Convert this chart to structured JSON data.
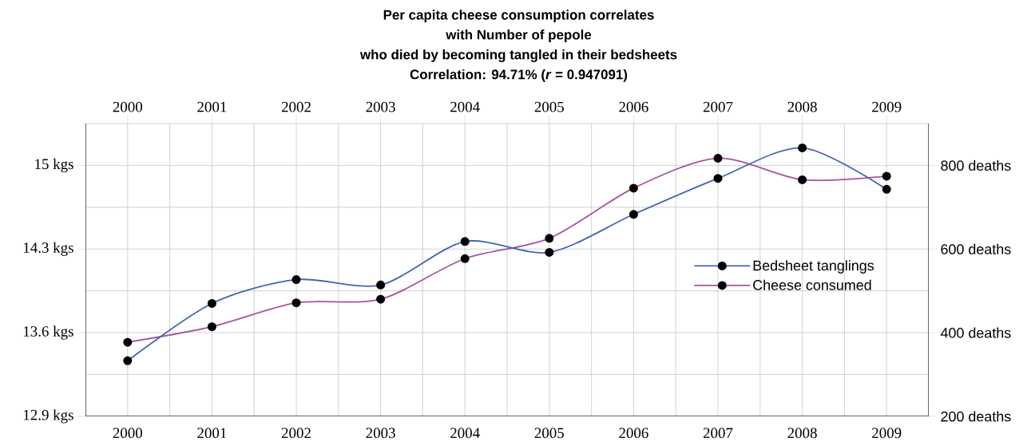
{
  "chart_data": {
    "type": "line",
    "title": "Per capita cheese consumption correlates with Number of pepole who died by becoming tangled in their bedsheets",
    "subtitle": "Correlation: 94.71% (*r* = 0.947091)",
    "x": [
      2000,
      2001,
      2002,
      2003,
      2004,
      2005,
      2006,
      2007,
      2008,
      2009
    ],
    "series": [
      {
        "name": "Bedsheet tanglings",
        "color": "#4466b0",
        "axis": "y2",
        "values": [
          333,
          470,
          527,
          514,
          618,
          592,
          683,
          769,
          842,
          743
        ]
      },
      {
        "name": "Cheese consumed",
        "color": "#a9529f",
        "values": [
          13.52,
          13.65,
          13.85,
          13.88,
          14.22,
          14.39,
          14.81,
          15.06,
          14.88,
          14.91
        ]
      }
    ],
    "xlim": [
      1999.5,
      2009.5
    ],
    "xticks": [
      2000,
      2001,
      2002,
      2003,
      2004,
      2005,
      2006,
      2007,
      2008,
      2009,
      {
        "value": 2000.5,
        "label": null
      },
      {
        "value": 2001.5,
        "label": null
      },
      {
        "value": 2002.5,
        "label": null
      },
      {
        "value": 2003.5,
        "label": null
      },
      {
        "value": 2004.5,
        "label": null
      },
      {
        "value": 2005.5,
        "label": null
      },
      {
        "value": 2006.5,
        "label": null
      },
      {
        "value": 2007.5,
        "label": null
      },
      {
        "value": 2008.5,
        "label": null
      }
    ],
    "x2lim": [
      1999.5,
      2009.5
    ],
    "x2ticks": [
      2000,
      2001,
      2002,
      2003,
      2004,
      2005,
      2006,
      2007,
      2008,
      2009
    ],
    "ylim": [
      12.9,
      15.35
    ],
    "yticks": [
      {
        "value": 12.9,
        "label": "12.9 kgs"
      },
      {
        "value": 13.25,
        "label": null
      },
      {
        "value": 13.6,
        "label": "13.6 kgs"
      },
      {
        "value": 13.95,
        "label": null
      },
      {
        "value": 14.3,
        "label": "14.3 kgs"
      },
      {
        "value": 14.65,
        "label": null
      },
      {
        "value": 15,
        "label": "15 kgs"
      },
      {
        "value": 15.35,
        "label": null
      }
    ],
    "y2lim": [
      200,
      900
    ],
    "y2ticks": [
      {
        "value": 200,
        "label": "200 deaths"
      },
      {
        "value": 400,
        "label": "400 deaths"
      },
      {
        "value": 600,
        "label": "600 deaths"
      },
      {
        "value": 800,
        "label": "800 deaths"
      }
    ],
    "grid": true,
    "legend": "right",
    "marker": "circle",
    "line_style": "solid"
  }
}
